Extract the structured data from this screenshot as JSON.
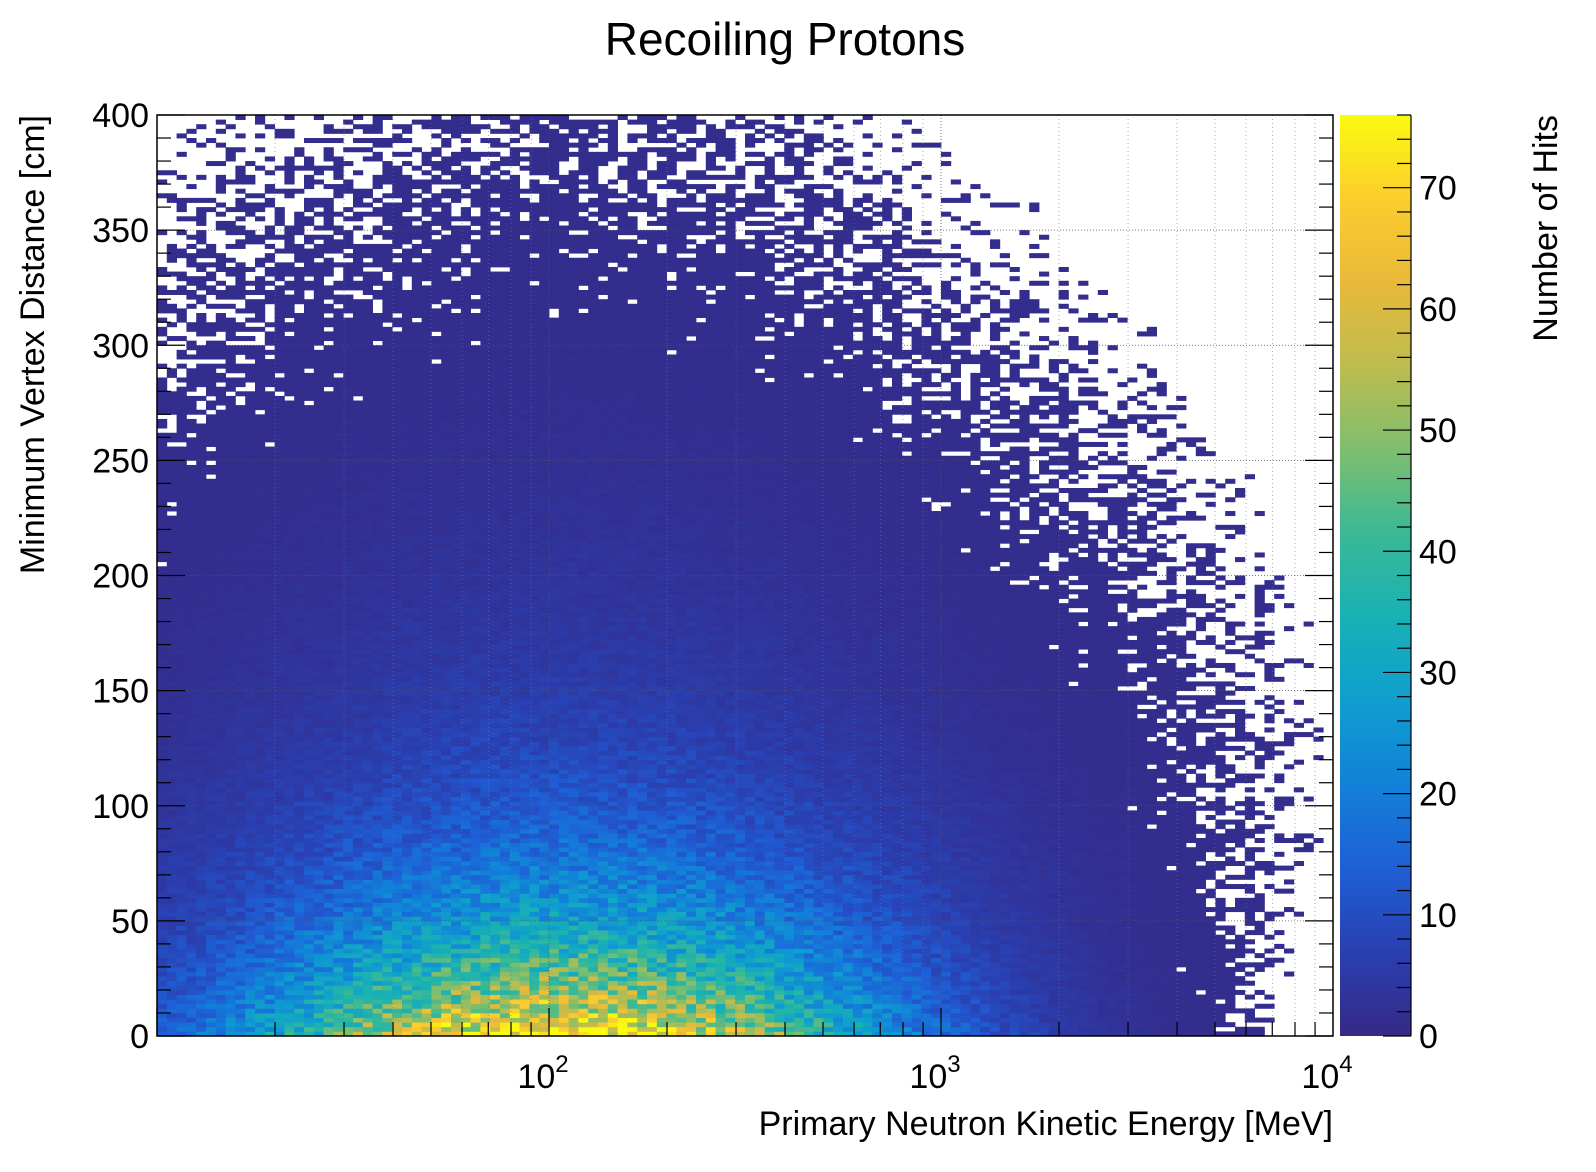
{
  "chart_data": {
    "type": "heatmap",
    "title": "Recoiling Protons",
    "xlabel": "Primary Neutron Kinetic Energy [MeV]",
    "ylabel": "Minimum Vertex Distance [cm]",
    "zlabel": "Number of Hits",
    "x_scale": "log",
    "xlim": [
      10,
      10000
    ],
    "ylim": [
      0,
      400
    ],
    "zlim": [
      0,
      76
    ],
    "x_ticks": [
      {
        "value": 100,
        "base": "10",
        "exp": "2"
      },
      {
        "value": 1000,
        "base": "10",
        "exp": "3"
      },
      {
        "value": 10000,
        "base": "10",
        "exp": "4"
      }
    ],
    "y_ticks": [
      "0",
      "50",
      "100",
      "150",
      "200",
      "250",
      "300",
      "350",
      "400"
    ],
    "z_ticks": [
      "0",
      "10",
      "20",
      "30",
      "40",
      "50",
      "60",
      "70"
    ],
    "grid": true,
    "bins": {
      "x_count": 120,
      "y_count": 200,
      "y_width": 2
    },
    "density_model": {
      "description_of_values": "Approximate bin counts read from the figure",
      "peak_energy_mev": 110,
      "peak_count": 76,
      "log_energy_spread": 0.55,
      "distance_decay_cm": 45,
      "distance_tail_cm": 120
    },
    "colormap": [
      "#352a87",
      "#2a3fb0",
      "#1e5fd6",
      "#1281d8",
      "#0f9ecf",
      "#18b1b4",
      "#3ab996",
      "#7ebe6e",
      "#bdbc4f",
      "#e8b93a",
      "#fccd2e",
      "#f9fb0e"
    ]
  }
}
